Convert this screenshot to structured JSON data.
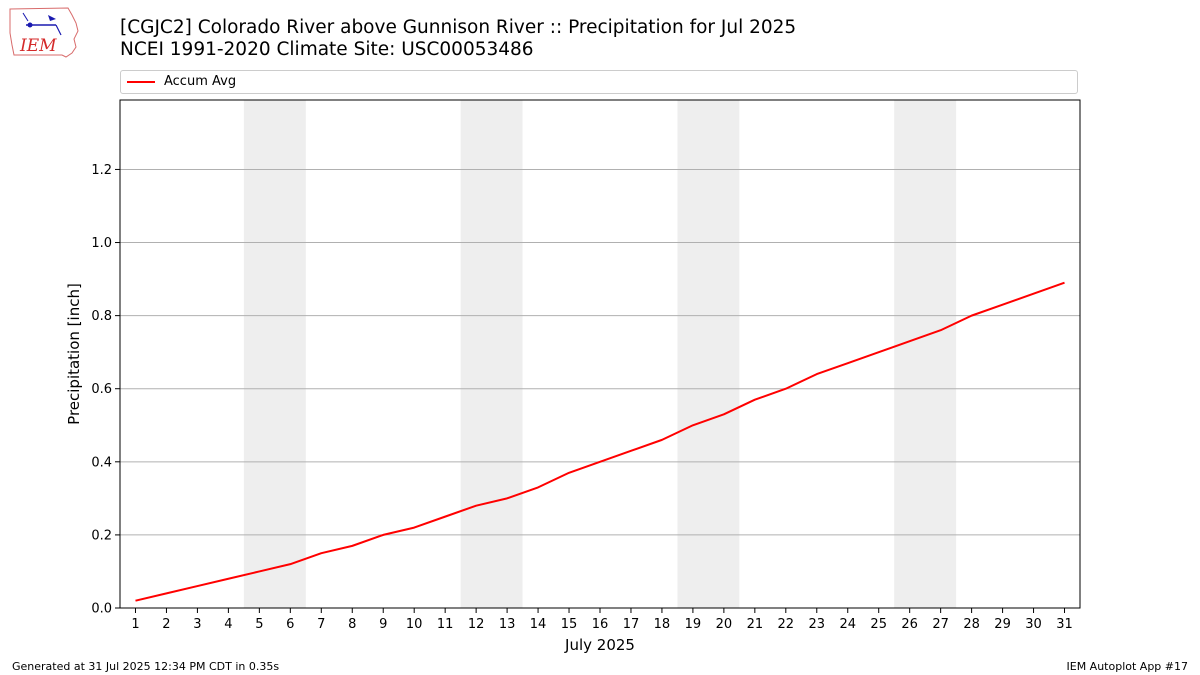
{
  "header": {
    "title_line1": "[CGJC2] Colorado River above Gunnison River :: Precipitation for Jul 2025",
    "title_line2": "NCEI 1991-2020 Climate Site: USC00053486"
  },
  "logo": {
    "text": "IEM"
  },
  "footer": {
    "generated": "Generated at 31 Jul 2025 12:34 PM CDT in 0.35s",
    "app": "IEM Autoplot App #17"
  },
  "colors": {
    "line": "#ff0000",
    "weekend": "#eeeeee",
    "grid": "#b0b0b0"
  },
  "chart_data": {
    "type": "line",
    "title": "[CGJC2] Colorado River above Gunnison River :: Precipitation for Jul 2025",
    "subtitle": "NCEI 1991-2020 Climate Site: USC00053486",
    "xlabel": "July 2025",
    "ylabel": "Precipitation [inch]",
    "xlim": [
      0.5,
      31.5
    ],
    "ylim": [
      0,
      1.39
    ],
    "yticks": [
      0.0,
      0.2,
      0.4,
      0.6,
      0.8,
      1.0,
      1.2
    ],
    "ytick_labels": [
      "0.0",
      "0.2",
      "0.4",
      "0.6",
      "0.8",
      "1.0",
      "1.2"
    ],
    "x": [
      1,
      2,
      3,
      4,
      5,
      6,
      7,
      8,
      9,
      10,
      11,
      12,
      13,
      14,
      15,
      16,
      17,
      18,
      19,
      20,
      21,
      22,
      23,
      24,
      25,
      26,
      27,
      28,
      29,
      30,
      31
    ],
    "xtick_labels": [
      "1",
      "2",
      "3",
      "4",
      "5",
      "6",
      "7",
      "8",
      "9",
      "10",
      "11",
      "12",
      "13",
      "14",
      "15",
      "16",
      "17",
      "18",
      "19",
      "20",
      "21",
      "22",
      "23",
      "24",
      "25",
      "26",
      "27",
      "28",
      "29",
      "30",
      "31"
    ],
    "series": [
      {
        "name": "Accum Avg",
        "color": "#ff0000",
        "values": [
          0.02,
          0.04,
          0.06,
          0.08,
          0.1,
          0.12,
          0.15,
          0.17,
          0.2,
          0.22,
          0.25,
          0.28,
          0.3,
          0.33,
          0.37,
          0.4,
          0.43,
          0.46,
          0.5,
          0.53,
          0.57,
          0.6,
          0.64,
          0.67,
          0.7,
          0.73,
          0.76,
          0.8,
          0.83,
          0.86,
          0.89
        ]
      }
    ],
    "shaded_days": [
      [
        5,
        6
      ],
      [
        12,
        13
      ],
      [
        19,
        20
      ],
      [
        26,
        27
      ]
    ],
    "grid": "horizontal",
    "legend_position": "top"
  }
}
